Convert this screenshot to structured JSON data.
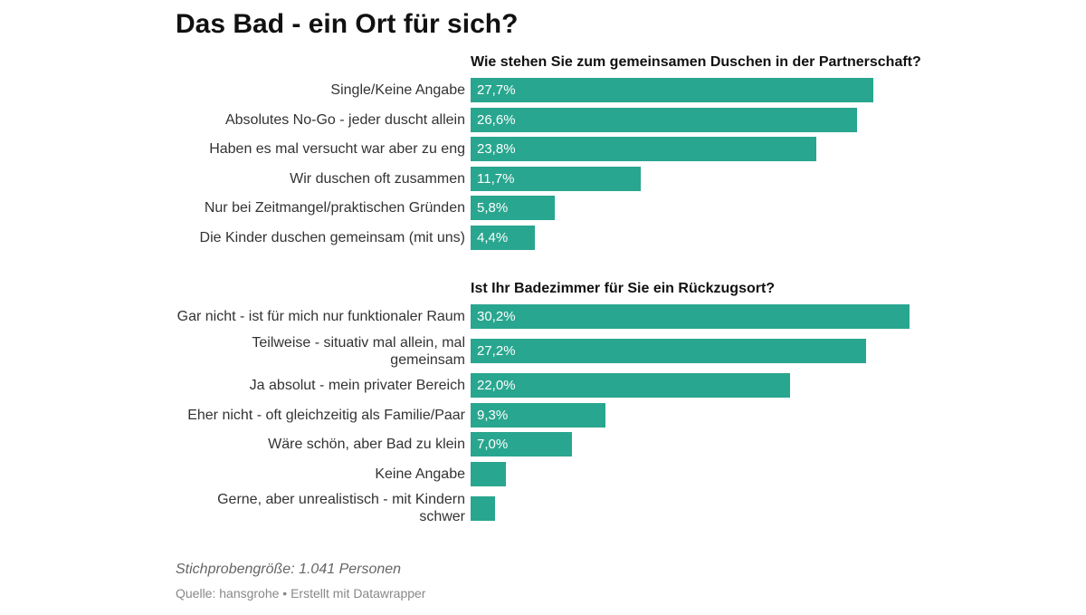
{
  "title": "Das Bad - ein Ort für sich?",
  "chart_data": [
    {
      "type": "bar",
      "orientation": "horizontal",
      "color": "#29a68f",
      "title": "Wie stehen Sie zum gemeinsamen Duschen in der Partnerschaft?",
      "categories": [
        "Single/Keine Angabe",
        "Absolutes No-Go - jeder duscht allein",
        "Haben es mal versucht war aber zu eng",
        "Wir duschen oft zusammen",
        "Nur bei Zeitmangel/praktischen Gründen",
        "Die Kinder duschen gemeinsam (mit uns)"
      ],
      "values": [
        27.7,
        26.6,
        23.8,
        11.7,
        5.8,
        4.4
      ],
      "value_labels": [
        "27,7%",
        "26,6%",
        "23,8%",
        "11,7%",
        "5,8%",
        "4,4%"
      ]
    },
    {
      "type": "bar",
      "orientation": "horizontal",
      "color": "#29a68f",
      "title": "Ist Ihr Badezimmer für Sie ein Rückzugsort?",
      "categories": [
        "Gar nicht - ist für mich nur funktionaler Raum",
        "Teilweise - situativ mal allein, mal gemeinsam",
        "Ja absolut - mein privater Bereich",
        "Eher nicht - oft gleichzeitig als Familie/Paar",
        "Wäre schön, aber Bad zu klein",
        "Keine Angabe",
        "Gerne, aber unrealistisch - mit Kindern schwer"
      ],
      "values": [
        30.2,
        27.2,
        22.0,
        9.3,
        7.0,
        2.4,
        1.7
      ],
      "value_labels": [
        "30,2%",
        "27,2%",
        "22,0%",
        "9,3%",
        "7,0%",
        null,
        null
      ]
    }
  ],
  "notes": "Stichprobengröße: 1.041 Personen",
  "source": "Quelle: hansgrohe • Erstellt mit Datawrapper"
}
